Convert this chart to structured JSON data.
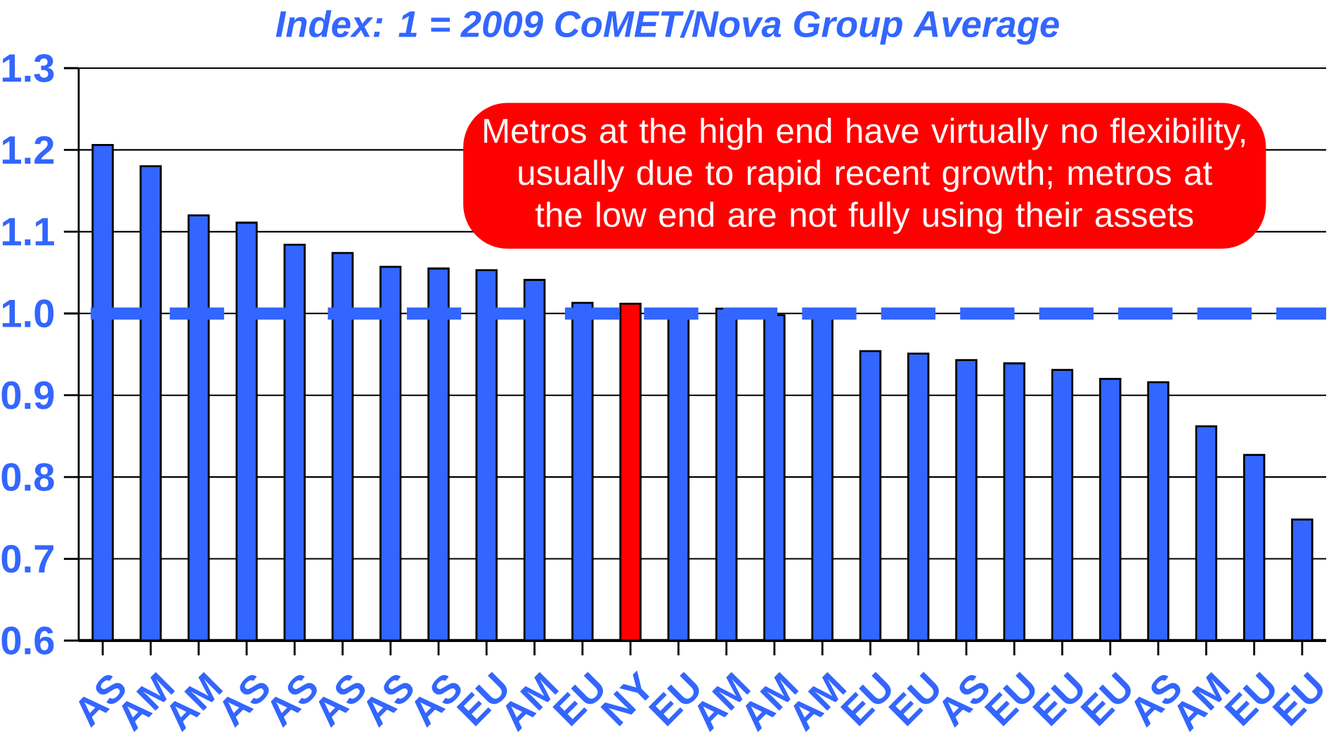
{
  "chart_data": {
    "type": "bar",
    "title": "Index: 1 = 2009 CoMET/Nova Group Average",
    "categories": [
      "AS",
      "AM",
      "AM",
      "AS",
      "AS",
      "AS",
      "AS",
      "AS",
      "EU",
      "AM",
      "EU",
      "NY",
      "EU",
      "AM",
      "AM",
      "AM",
      "EU",
      "EU",
      "AS",
      "EU",
      "EU",
      "EU",
      "AS",
      "AM",
      "EU",
      "EU"
    ],
    "values": [
      1.206,
      1.18,
      1.12,
      1.111,
      1.084,
      1.074,
      1.057,
      1.055,
      1.053,
      1.041,
      1.013,
      1.012,
      1.006,
      1.006,
      0.998,
      0.998,
      0.954,
      0.951,
      0.943,
      0.939,
      0.931,
      0.92,
      0.916,
      0.862,
      0.827,
      0.748
    ],
    "colors": [
      "#3366ff",
      "#3366ff",
      "#3366ff",
      "#3366ff",
      "#3366ff",
      "#3366ff",
      "#3366ff",
      "#3366ff",
      "#3366ff",
      "#3366ff",
      "#3366ff",
      "#ff0000",
      "#3366ff",
      "#3366ff",
      "#3366ff",
      "#3366ff",
      "#3366ff",
      "#3366ff",
      "#3366ff",
      "#3366ff",
      "#3366ff",
      "#3366ff",
      "#3366ff",
      "#3366ff",
      "#3366ff",
      "#3366ff"
    ],
    "ylim": [
      0.6,
      1.3
    ],
    "yticks": [
      {
        "value": 0.6,
        "label": "0.6"
      },
      {
        "value": 0.7,
        "label": "0.7"
      },
      {
        "value": 0.8,
        "label": "0.8"
      },
      {
        "value": 0.9,
        "label": "0.9"
      },
      {
        "value": 1.0,
        "label": "1.0"
      },
      {
        "value": 1.1,
        "label": "1.1"
      },
      {
        "value": 1.2,
        "label": "1.2"
      },
      {
        "value": 1.3,
        "label": "1.3"
      }
    ],
    "grid": "y",
    "ref_lines": [
      {
        "axis": "y",
        "value": 1.0,
        "color": "#3366ff",
        "line_style": "dashed"
      }
    ],
    "annotations": [
      "Metros at the high end have virtually no flexibility, usually due to rapid recent growth; metros at the low end are not fully using their assets"
    ]
  }
}
